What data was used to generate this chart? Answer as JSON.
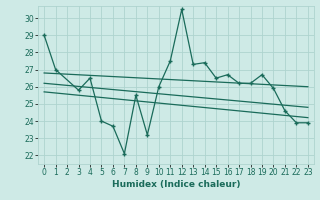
{
  "xlabel": "Humidex (Indice chaleur)",
  "bg_color": "#ceeae6",
  "grid_color": "#aed4cf",
  "line_color": "#1a6b5a",
  "xlim": [
    -0.5,
    23.5
  ],
  "ylim": [
    21.5,
    30.7
  ],
  "yticks": [
    22,
    23,
    24,
    25,
    26,
    27,
    28,
    29,
    30
  ],
  "xticks": [
    0,
    1,
    2,
    3,
    4,
    5,
    6,
    7,
    8,
    9,
    10,
    11,
    12,
    13,
    14,
    15,
    16,
    17,
    18,
    19,
    20,
    21,
    22,
    23
  ],
  "series1_x": [
    0,
    1,
    3,
    4,
    5,
    6,
    7,
    8,
    9,
    10,
    11,
    12,
    13,
    14,
    15,
    16,
    17,
    18,
    19,
    20,
    21,
    22,
    23
  ],
  "series1_y": [
    29,
    27,
    25.8,
    26.5,
    24.0,
    23.7,
    22.1,
    25.5,
    23.2,
    26.0,
    27.5,
    30.5,
    27.3,
    27.4,
    26.5,
    26.7,
    26.2,
    26.2,
    26.7,
    25.9,
    24.6,
    23.9,
    23.9
  ],
  "series2_x": [
    0,
    23
  ],
  "series2_y": [
    26.8,
    26.0
  ],
  "series3_x": [
    0,
    23
  ],
  "series3_y": [
    26.2,
    24.8
  ],
  "series4_x": [
    0,
    23
  ],
  "series4_y": [
    25.7,
    24.2
  ]
}
